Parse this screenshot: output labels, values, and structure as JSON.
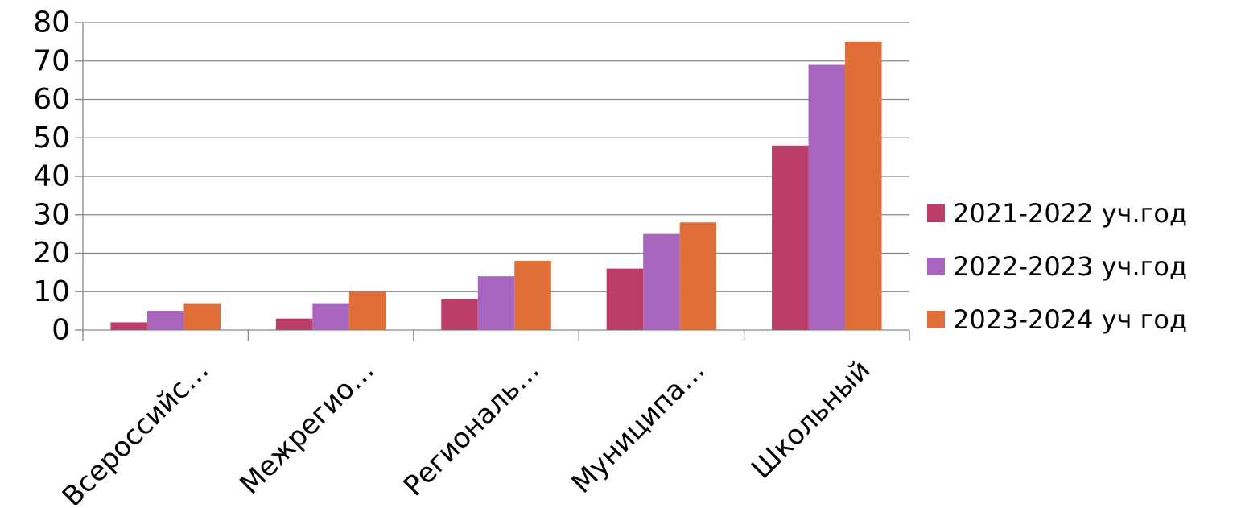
{
  "chart_data": {
    "type": "bar",
    "title": "",
    "xlabel": "",
    "ylabel": "",
    "categories": [
      "Всероссийс…",
      "Межрегио…",
      "Региональ…",
      "Муниципа…",
      "Школьный"
    ],
    "series": [
      {
        "name": "2021-2022 уч.год",
        "color": "#bb3e68",
        "values": [
          2,
          3,
          8,
          16,
          48
        ]
      },
      {
        "name": "2022-2023 уч.год",
        "color": "#a865be",
        "values": [
          5,
          7,
          14,
          25,
          69
        ]
      },
      {
        "name": "2023-2024 уч год",
        "color": "#df6e38",
        "values": [
          7,
          10,
          18,
          28,
          75
        ]
      }
    ],
    "yticks": [
      "0",
      "10",
      "20",
      "30",
      "40",
      "50",
      "60",
      "70",
      "80"
    ],
    "ylim": [
      0,
      80
    ],
    "grid": true,
    "legend_position": "right"
  }
}
